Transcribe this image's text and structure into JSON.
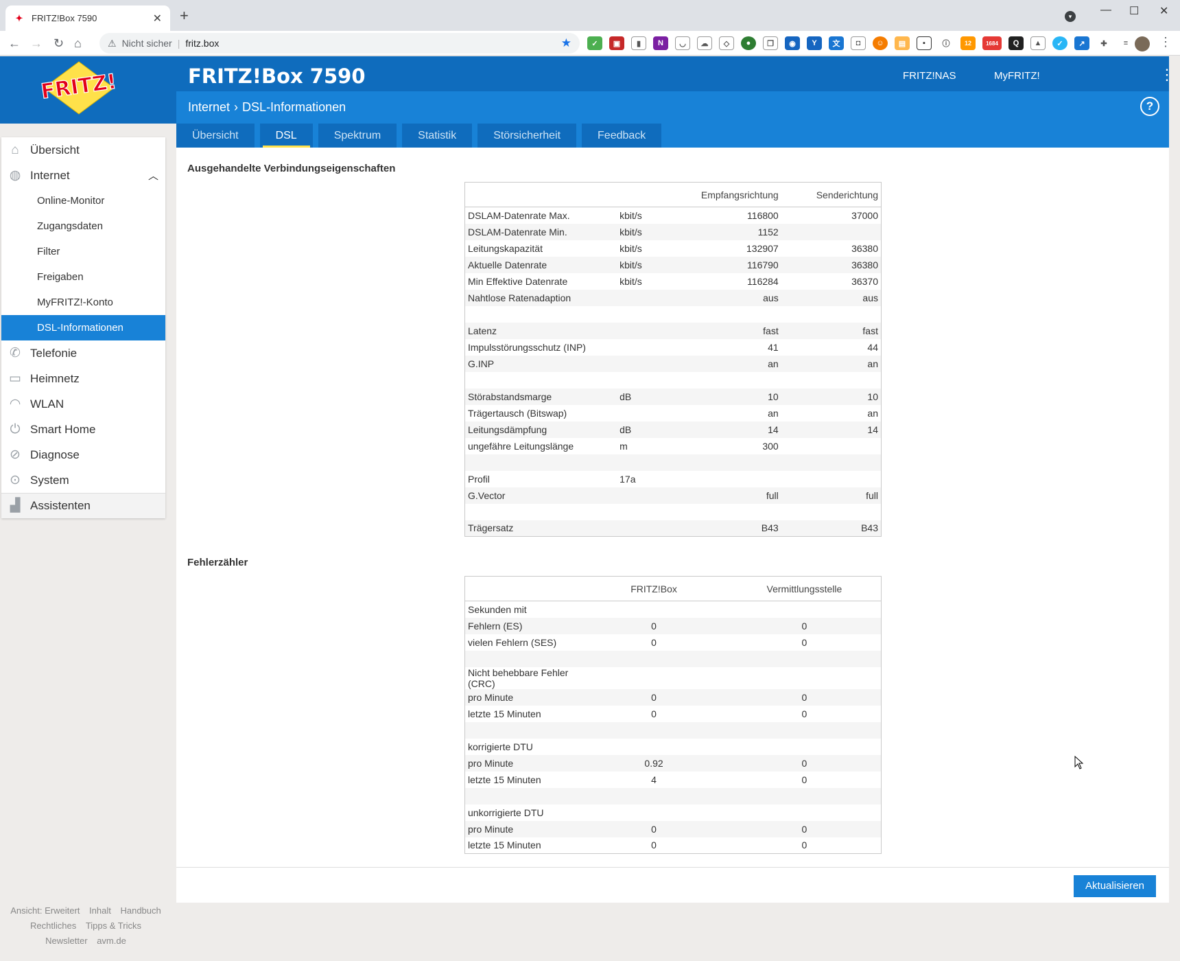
{
  "browser": {
    "tab_title": "FRITZ!Box 7590",
    "security_label": "Nicht sicher",
    "url": "fritz.box",
    "ext_badge_1": "12",
    "ext_badge_2": "1684"
  },
  "header": {
    "logo_text": "FRITZ!",
    "title": "FRITZ!Box 7590",
    "link_nas": "FRITZ!NAS",
    "link_myfritz": "MyFRITZ!"
  },
  "breadcrumb": {
    "parent": "Internet",
    "sep": ">",
    "current": "DSL-Informationen"
  },
  "tabs": [
    {
      "label": "Übersicht"
    },
    {
      "label": "DSL"
    },
    {
      "label": "Spektrum"
    },
    {
      "label": "Statistik"
    },
    {
      "label": "Störsicherheit"
    },
    {
      "label": "Feedback"
    }
  ],
  "sidebar": {
    "items": [
      {
        "label": "Übersicht"
      },
      {
        "label": "Internet"
      },
      {
        "label": "Telefonie"
      },
      {
        "label": "Heimnetz"
      },
      {
        "label": "WLAN"
      },
      {
        "label": "Smart Home"
      },
      {
        "label": "Diagnose"
      },
      {
        "label": "System"
      },
      {
        "label": "Assistenten"
      }
    ],
    "sub": [
      {
        "label": "Online-Monitor"
      },
      {
        "label": "Zugangsdaten"
      },
      {
        "label": "Filter"
      },
      {
        "label": "Freigaben"
      },
      {
        "label": "MyFRITZ!-Konto"
      },
      {
        "label": "DSL-Informationen"
      }
    ]
  },
  "footer": {
    "l1": "Ansicht: Erweitert",
    "l2": "Inhalt",
    "l3": "Handbuch",
    "l4": "Rechtliches",
    "l5": "Tipps & Tricks",
    "l6": "Newsletter",
    "l7": "avm.de"
  },
  "section1": {
    "title": "Ausgehandelte Verbindungseigenschaften",
    "headers": [
      "",
      "",
      "Empfangsrichtung",
      "Senderichtung"
    ],
    "rows": [
      [
        "DSLAM-Datenrate Max.",
        "kbit/s",
        "116800",
        "37000"
      ],
      [
        "DSLAM-Datenrate Min.",
        "kbit/s",
        "1152",
        ""
      ],
      [
        "Leitungskapazität",
        "kbit/s",
        "132907",
        "36380"
      ],
      [
        "Aktuelle Datenrate",
        "kbit/s",
        "116790",
        "36380"
      ],
      [
        "Min Effektive Datenrate",
        "kbit/s",
        "116284",
        "36370"
      ],
      [
        "Nahtlose Ratenadaption",
        "",
        "aus",
        "aus"
      ],
      [
        "",
        "",
        "",
        ""
      ],
      [
        "Latenz",
        "",
        "fast",
        "fast"
      ],
      [
        "Impulsstörungsschutz (INP)",
        "",
        "41",
        "44"
      ],
      [
        "G.INP",
        "",
        "an",
        "an"
      ],
      [
        "",
        "",
        "",
        ""
      ],
      [
        "Störabstandsmarge",
        "dB",
        "10",
        "10"
      ],
      [
        "Trägertausch (Bitswap)",
        "",
        "an",
        "an"
      ],
      [
        "Leitungsdämpfung",
        "dB",
        "14",
        "14"
      ],
      [
        "ungefähre Leitungslänge",
        "m",
        "300",
        ""
      ],
      [
        "",
        "",
        "",
        ""
      ],
      [
        "Profil",
        "17a",
        "",
        ""
      ],
      [
        "G.Vector",
        "",
        "full",
        "full"
      ],
      [
        "",
        "",
        "",
        ""
      ],
      [
        "Trägersatz",
        "",
        "B43",
        "B43"
      ]
    ]
  },
  "section2": {
    "title": "Fehlerzähler",
    "headers": [
      "",
      "FRITZ!Box",
      "Vermittlungsstelle"
    ],
    "rows": [
      [
        "Sekunden mit",
        "",
        ""
      ],
      [
        "Fehlern (ES)",
        "0",
        "0"
      ],
      [
        "vielen Fehlern (SES)",
        "0",
        "0"
      ],
      [
        "",
        "",
        ""
      ],
      [
        "Nicht behebbare Fehler (CRC)",
        "",
        ""
      ],
      [
        "pro Minute",
        "0",
        "0"
      ],
      [
        "letzte 15 Minuten",
        "0",
        "0"
      ],
      [
        "",
        "",
        ""
      ],
      [
        "korrigierte DTU",
        "",
        ""
      ],
      [
        "pro Minute",
        "0.92",
        "0"
      ],
      [
        "letzte 15 Minuten",
        "4",
        "0"
      ],
      [
        "",
        "",
        ""
      ],
      [
        "unkorrigierte DTU",
        "",
        ""
      ],
      [
        "pro Minute",
        "0",
        "0"
      ],
      [
        "letzte 15 Minuten",
        "0",
        "0"
      ]
    ]
  },
  "actions": {
    "update": "Aktualisieren"
  }
}
